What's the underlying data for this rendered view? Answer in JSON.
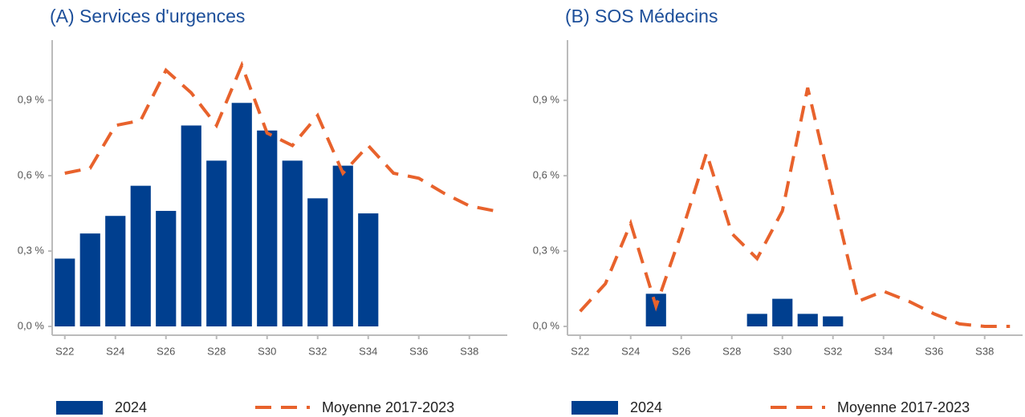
{
  "chart_data": [
    {
      "type": "combo",
      "title": "(A) Services d'urgences",
      "categories": [
        "S22",
        null,
        "S24",
        null,
        "S26",
        null,
        "S28",
        null,
        "S30",
        null,
        "S32",
        null,
        "S34",
        null,
        "S36",
        null,
        "S38",
        null
      ],
      "series": [
        {
          "name": "2024",
          "type": "bar",
          "color": "#003f8f",
          "values": [
            0.27,
            0.37,
            0.44,
            0.56,
            0.46,
            0.8,
            0.66,
            0.89,
            0.78,
            0.66,
            0.51,
            0.64,
            0.45,
            null,
            null,
            null,
            null,
            null
          ]
        },
        {
          "name": "Moyenne 2017-2023",
          "type": "line",
          "dashed": true,
          "color": "#e8622c",
          "values": [
            0.61,
            0.63,
            0.8,
            0.82,
            1.02,
            0.93,
            0.8,
            1.04,
            0.77,
            0.72,
            0.84,
            0.61,
            0.72,
            0.61,
            0.59,
            0.53,
            0.48,
            0.46
          ]
        }
      ],
      "ylim": [
        -0.035,
        1.14
      ],
      "yticks": [
        {
          "value": 0,
          "label": "0,0 %"
        },
        {
          "value": 0.3,
          "label": "0,3 %"
        },
        {
          "value": 0.6,
          "label": "0,6 %"
        },
        {
          "value": 0.9,
          "label": "0,9 %"
        }
      ],
      "legend": "bottom"
    },
    {
      "type": "combo",
      "title": "(B) SOS Médecins",
      "categories": [
        "S22",
        null,
        "S24",
        null,
        "S26",
        null,
        "S28",
        null,
        "S30",
        null,
        "S32",
        null,
        "S34",
        null,
        "S36",
        null,
        "S38",
        null
      ],
      "series": [
        {
          "name": "2024",
          "type": "bar",
          "color": "#003f8f",
          "values": [
            0,
            0,
            0,
            0.13,
            0,
            0,
            0,
            0.05,
            0.11,
            0.05,
            0.04,
            0,
            0,
            null,
            null,
            null,
            null,
            null
          ]
        },
        {
          "name": "Moyenne 2017-2023",
          "type": "line",
          "dashed": true,
          "color": "#e8622c",
          "values": [
            0.06,
            0.17,
            0.41,
            0.08,
            0.37,
            0.69,
            0.37,
            0.27,
            0.46,
            0.95,
            0.52,
            0.1,
            0.14,
            0.1,
            0.05,
            0.01,
            0,
            0
          ]
        }
      ],
      "ylim": [
        -0.035,
        1.14
      ],
      "yticks": [
        {
          "value": 0,
          "label": "0,0 %"
        },
        {
          "value": 0.3,
          "label": "0,3 %"
        },
        {
          "value": 0.6,
          "label": "0,6 %"
        },
        {
          "value": 0.9,
          "label": "0,9 %"
        }
      ],
      "legend": "bottom"
    }
  ]
}
